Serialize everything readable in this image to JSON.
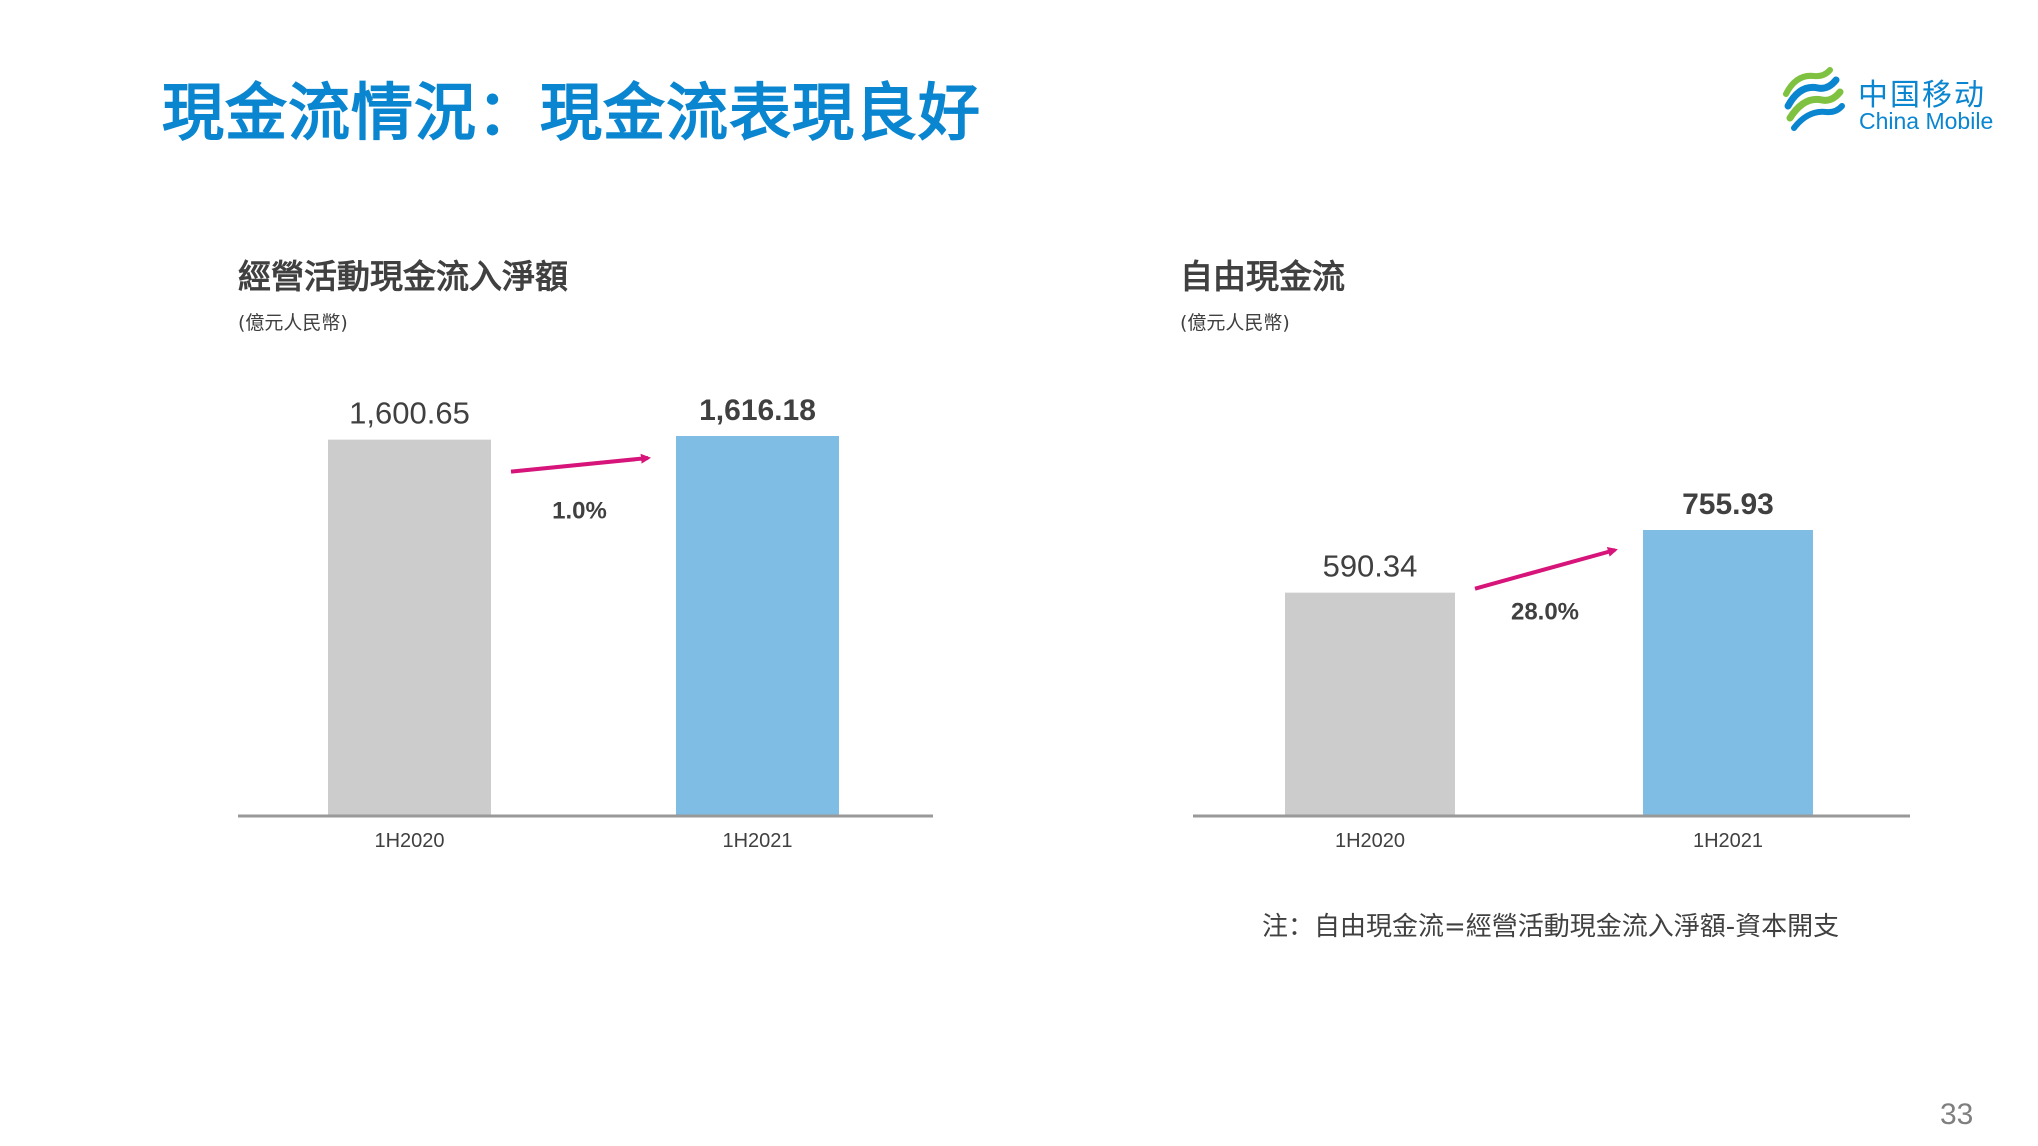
{
  "title": "現金流情況：現金流表現良好",
  "logo": {
    "cn": "中国移动",
    "en": "China Mobile",
    "icon": "china-mobile-logo-icon"
  },
  "chart_data": [
    {
      "type": "bar",
      "title": "經營活動現金流入淨額",
      "unit": "(億元人民幣)",
      "categories": [
        "1H2020",
        "1H2021"
      ],
      "values": [
        1600.65,
        1616.18
      ],
      "value_labels": [
        "1,600.65",
        "1,616.18"
      ],
      "colors": [
        "#cccccc",
        "#7fbde4"
      ],
      "growth_label": "1.0%",
      "ylim": [
        0,
        1800
      ],
      "grid": false
    },
    {
      "type": "bar",
      "title": "自由現金流",
      "unit": "(億元人民幣)",
      "categories": [
        "1H2020",
        "1H2021"
      ],
      "values": [
        590.34,
        755.93
      ],
      "value_labels": [
        "590.34",
        "755.93"
      ],
      "colors": [
        "#cccccc",
        "#7fbde4"
      ],
      "growth_label": "28.0%",
      "ylim": [
        0,
        1800
      ],
      "grid": false
    }
  ],
  "note": "注：自由現金流=經營活動現金流入淨額-資本開支",
  "page_number": "33",
  "colors": {
    "title": "#0a85d0",
    "arrow": "#d6147a",
    "text": "#404040",
    "axis": "#999999"
  }
}
